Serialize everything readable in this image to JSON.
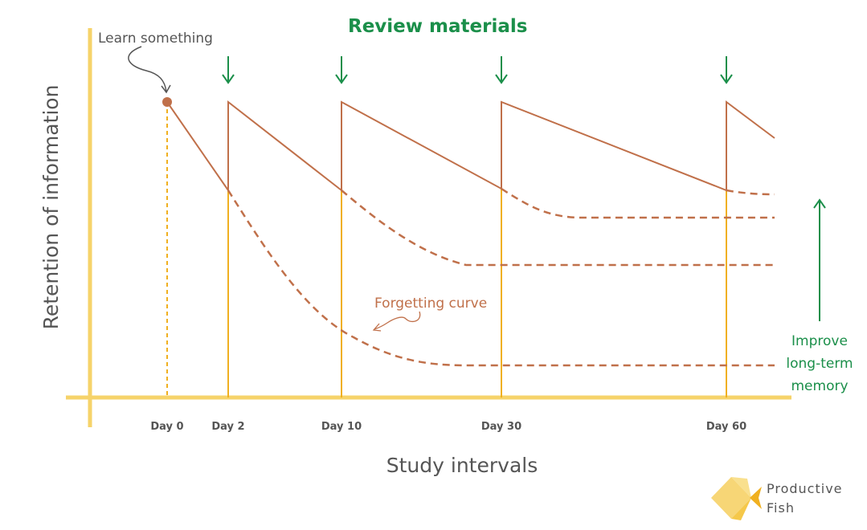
{
  "title": "Review materials",
  "learn_note": "Learn something",
  "forgetting_note": "Forgetting curve",
  "improve_note": [
    "Improve",
    "long-term",
    "memory"
  ],
  "y_axis_label": "Retention of information",
  "x_axis_label": "Study intervals",
  "day_labels": [
    "Day 0",
    "Day 2",
    "Day 10",
    "Day 30",
    "Day 60"
  ],
  "brand": [
    "Productive",
    "Fish"
  ],
  "colors": {
    "axis": "#f6d36a",
    "review_line": "#f0b020",
    "curve": "#c0704a",
    "accent_green": "#1b8f4a",
    "text_gray": "#555555",
    "brand_fish": "#f7d676"
  },
  "icons": {
    "review_arrows": "arrow-down-icon",
    "improve_arrow": "arrow-up-icon",
    "logo": "fish-logo-icon"
  }
}
